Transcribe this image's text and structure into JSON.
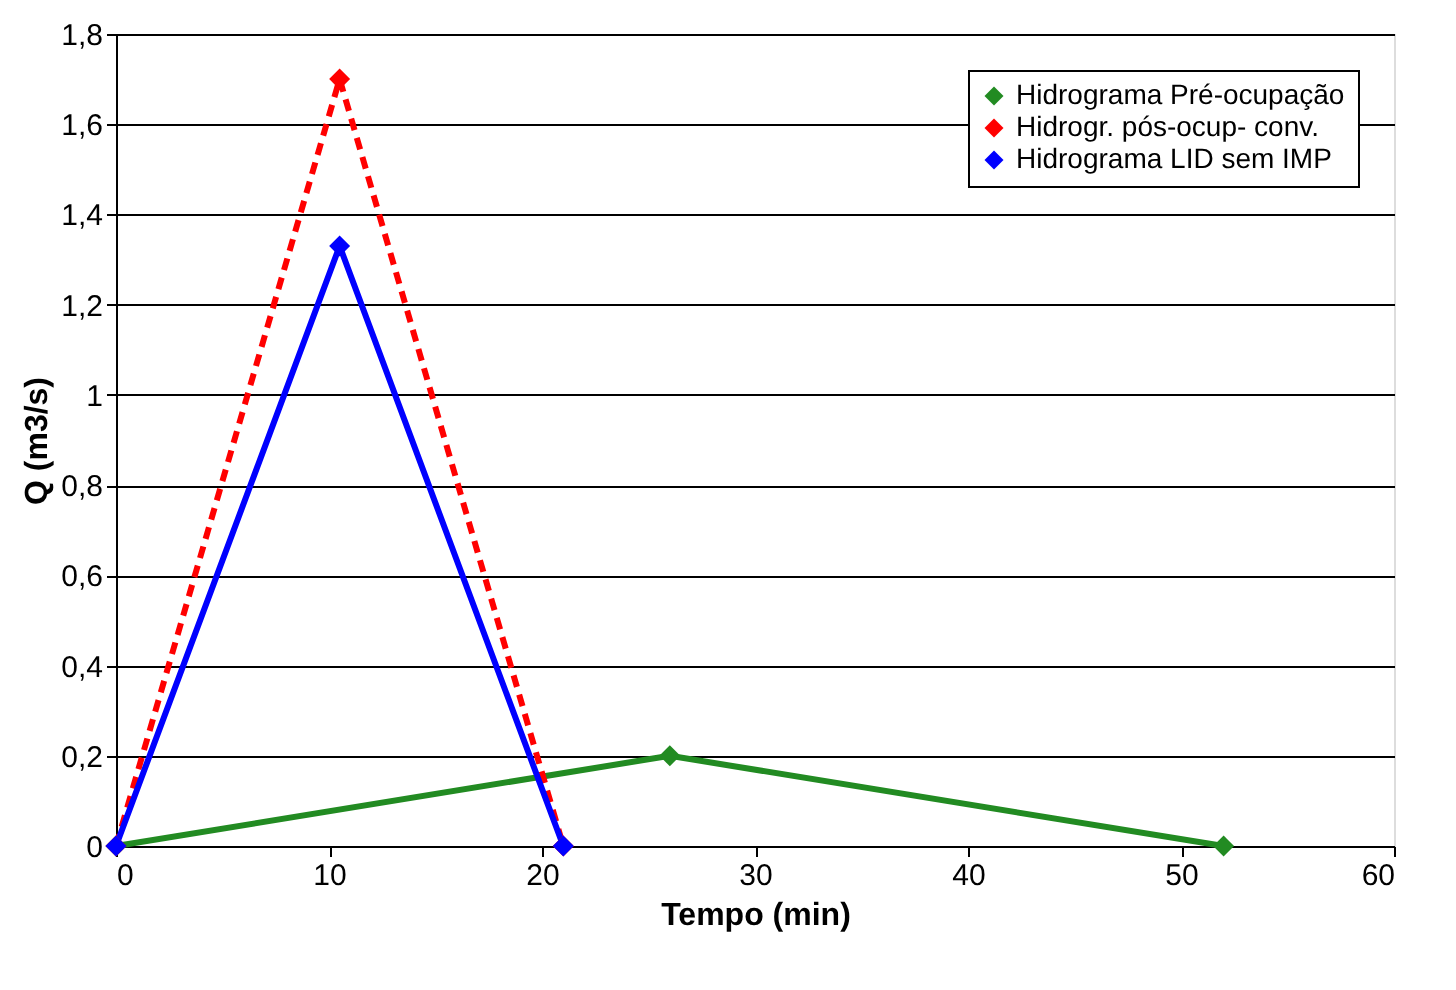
{
  "chart_data": {
    "type": "line",
    "xlabel": "Tempo (min)",
    "ylabel": "Q (m3/s)",
    "xlim": [
      0,
      60
    ],
    "xticks": [
      0,
      10,
      20,
      30,
      40,
      50,
      60
    ],
    "ylim": [
      0,
      1.8
    ],
    "yticks": [
      0,
      {
        "value": 0.2,
        "label": "0,2"
      },
      {
        "value": 0.4,
        "label": "0,4"
      },
      {
        "value": 0.6,
        "label": "0,6"
      },
      {
        "value": 0.8,
        "label": "0,8"
      },
      1,
      {
        "value": 1.2,
        "label": "1,2"
      },
      {
        "value": 1.4,
        "label": "1,4"
      },
      {
        "value": 1.6,
        "label": "1,6"
      },
      {
        "value": 1.8,
        "label": "1,8"
      }
    ],
    "grid": "y",
    "legend": "top right",
    "marker": "diamond",
    "series": [
      {
        "name": "Hidrograma Pré-ocupação",
        "color": "#228b22",
        "x": [
          0,
          26,
          52
        ],
        "values": [
          0,
          0.2,
          0
        ],
        "line_style": "solid"
      },
      {
        "name": "Hidrogr. pós-ocup- conv.",
        "color": "#ff0000",
        "x": [
          0,
          10.5,
          21
        ],
        "values": [
          0,
          1.7,
          0
        ],
        "line_style": "dashed"
      },
      {
        "name": "Hidrograma LID sem IMP",
        "color": "#0000ff",
        "x": [
          0,
          10.5,
          21
        ],
        "values": [
          0,
          1.33,
          0
        ],
        "line_style": "solid"
      }
    ]
  }
}
